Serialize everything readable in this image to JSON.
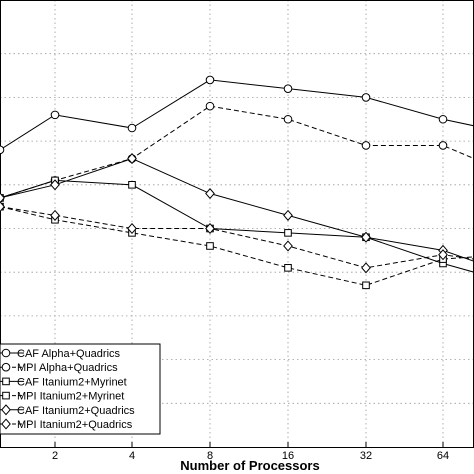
{
  "chart_data": {
    "type": "line",
    "title": "",
    "xlabel": "Number of Processors",
    "ylabel": "",
    "x": [
      1,
      2,
      4,
      8,
      16,
      32,
      64,
      128
    ],
    "x_ticks": [
      "2",
      "4",
      "8",
      "16",
      "32",
      "64"
    ],
    "x_scale": "log2",
    "grid": true,
    "legend_position": "bottom-left",
    "series": [
      {
        "name": "CAF Alpha+Quadrics",
        "marker": "circle",
        "dash": "solid",
        "values": [
          0.68,
          0.76,
          0.73,
          0.84,
          0.82,
          0.8,
          0.75,
          0.72
        ]
      },
      {
        "name": "MPI Alpha+Quadrics",
        "marker": "circle",
        "dash": "dashed",
        "values": [
          0.57,
          0.61,
          0.66,
          0.78,
          0.75,
          0.69,
          0.69,
          0.63
        ]
      },
      {
        "name": "CAF Itanium2+Myrinet",
        "marker": "square",
        "dash": "solid",
        "values": [
          0.57,
          0.61,
          0.6,
          0.5,
          0.49,
          0.48,
          0.42,
          0.38
        ]
      },
      {
        "name": "MPI Itanium2+Myrinet",
        "marker": "square",
        "dash": "dashed",
        "values": [
          0.55,
          0.52,
          0.49,
          0.46,
          0.41,
          0.37,
          0.43,
          0.44
        ]
      },
      {
        "name": "CAF Itanium2+Quadrics",
        "marker": "diamond",
        "dash": "solid",
        "values": [
          0.57,
          0.6,
          0.66,
          0.58,
          0.53,
          0.48,
          0.45,
          0.4
        ]
      },
      {
        "name": "MPI Itanium2+Quadrics",
        "marker": "diamond",
        "dash": "dashed",
        "values": [
          0.55,
          0.53,
          0.5,
          0.5,
          0.46,
          0.41,
          0.44,
          0.42
        ]
      }
    ]
  }
}
